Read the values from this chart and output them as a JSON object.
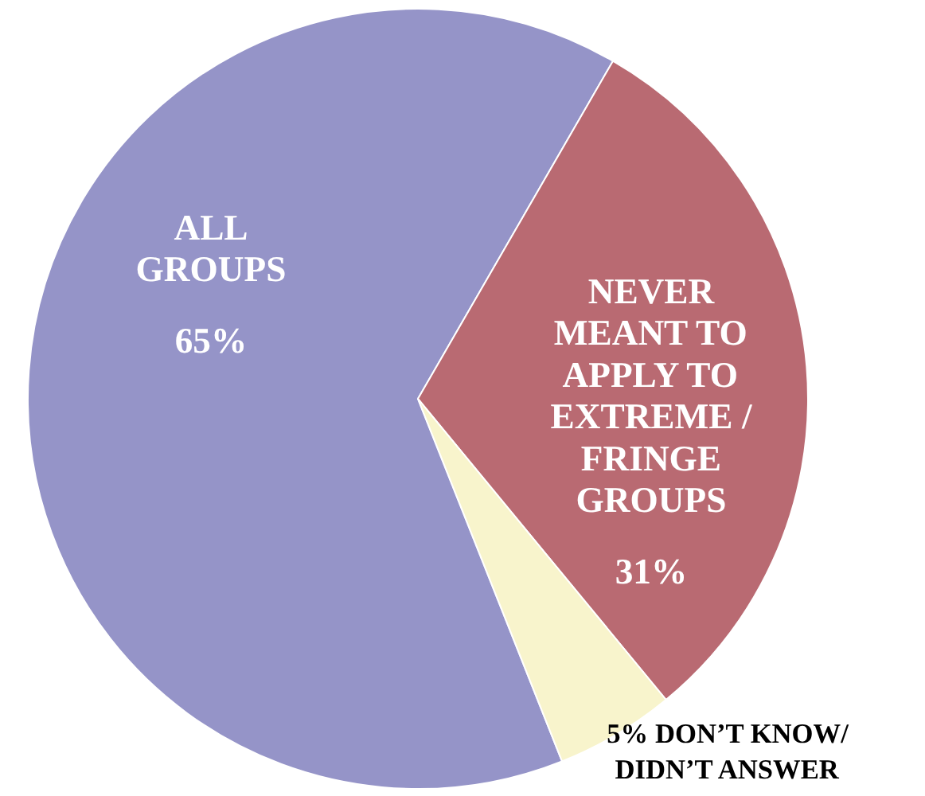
{
  "chart_data": {
    "type": "pie",
    "categories": [
      "ALL\nGROUPS",
      "NEVER\nMEANT TO\nAPPLY TO\nEXTREME /\nFRINGE\nGROUPS",
      "DON’T KNOW/\nDIDN’T ANSWER"
    ],
    "values": [
      65,
      31,
      5
    ],
    "colors": [
      "#9594c8",
      "#b96a72",
      "#f8f4cc"
    ],
    "value_labels": [
      "65%",
      "31%",
      "5%"
    ]
  }
}
